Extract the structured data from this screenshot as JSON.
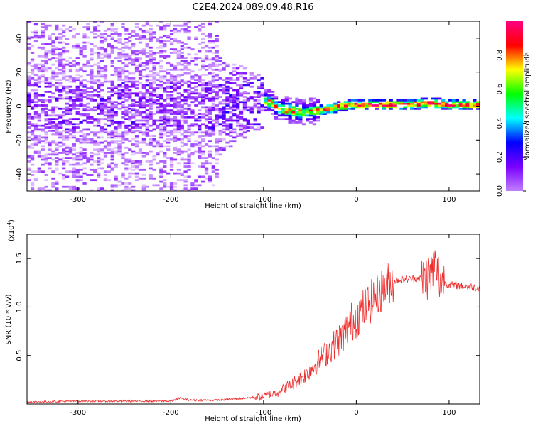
{
  "figure": {
    "title": "C2E4.2024.089.09.48.R16"
  },
  "chart_data": [
    {
      "type": "heatmap",
      "x": {
        "label": "Height of straight line (km)",
        "range": [
          -355,
          133
        ],
        "ticks": [
          -300,
          -200,
          -100,
          0,
          100
        ],
        "tick_labels": [
          "-300",
          "-200",
          "-100",
          "0",
          "100"
        ]
      },
      "y": {
        "label": "Frequency (Hz)",
        "range": [
          -50,
          50
        ],
        "ticks": [
          -40,
          -20,
          0,
          20,
          40
        ],
        "tick_labels": [
          "-40",
          "-20",
          "0",
          "20",
          "40"
        ]
      },
      "colorbar": {
        "label": "Normalized spectral amplitude",
        "range": [
          0,
          1
        ],
        "ticks": [
          0.0,
          0.2,
          0.4,
          0.6,
          0.8
        ],
        "tick_labels": [
          "0.0",
          "0.2",
          "0.4",
          "0.6",
          "0.8"
        ],
        "colors": [
          "#ffffff",
          "#c080ff",
          "#7a00ff",
          "#0000ff",
          "#00ffff",
          "#00ff00",
          "#ffff00",
          "#ff0000",
          "#ff0080"
        ]
      },
      "ridge_frequency": [
        [
          -355,
          0
        ],
        [
          -300,
          0
        ],
        [
          -250,
          0
        ],
        [
          -200,
          0
        ],
        [
          -150,
          0
        ],
        [
          -120,
          2
        ],
        [
          -100,
          3
        ],
        [
          -90,
          2
        ],
        [
          -85,
          -1
        ],
        [
          -75,
          -2
        ],
        [
          -65,
          -3
        ],
        [
          -55,
          -4
        ],
        [
          -45,
          -3
        ],
        [
          -35,
          -2
        ],
        [
          -25,
          -1
        ],
        [
          -15,
          0
        ],
        [
          -5,
          1
        ],
        [
          5,
          1
        ],
        [
          20,
          1
        ],
        [
          40,
          1
        ],
        [
          60,
          1
        ],
        [
          80,
          2
        ],
        [
          100,
          1
        ],
        [
          133,
          1
        ]
      ],
      "grid": false
    },
    {
      "type": "line",
      "x": {
        "label": "Height of straight line (km)",
        "range": [
          -355,
          133
        ],
        "ticks": [
          -300,
          -200,
          -100,
          0,
          100
        ],
        "tick_labels": [
          "-300",
          "-200",
          "-100",
          "0",
          "100"
        ]
      },
      "y": {
        "label": "SNR (10 * v/v)",
        "multiplier_label": "(x10",
        "multiplier_exp": "4",
        "multiplier_close": ")",
        "range": [
          0,
          1.75
        ],
        "ticks": [
          0.5,
          1.0,
          1.5
        ],
        "tick_labels": [
          "0.5",
          "1.0",
          "1.5"
        ]
      },
      "series": [
        {
          "color": "#ee2e2e",
          "x": [
            -355,
            -300,
            -250,
            -200,
            -190,
            -180,
            -150,
            -120,
            -100,
            -85,
            -70,
            -55,
            -45,
            -35,
            -25,
            -15,
            -5,
            5,
            15,
            25,
            35,
            45,
            60,
            70,
            80,
            85,
            90,
            100,
            110,
            120,
            133
          ],
          "y": [
            0.02,
            0.03,
            0.03,
            0.03,
            0.06,
            0.04,
            0.04,
            0.06,
            0.08,
            0.12,
            0.2,
            0.3,
            0.4,
            0.5,
            0.6,
            0.7,
            0.85,
            0.95,
            1.05,
            1.15,
            1.25,
            1.28,
            1.29,
            1.3,
            1.32,
            1.45,
            1.28,
            1.23,
            1.22,
            1.21,
            1.2
          ]
        }
      ],
      "grid": false
    }
  ]
}
